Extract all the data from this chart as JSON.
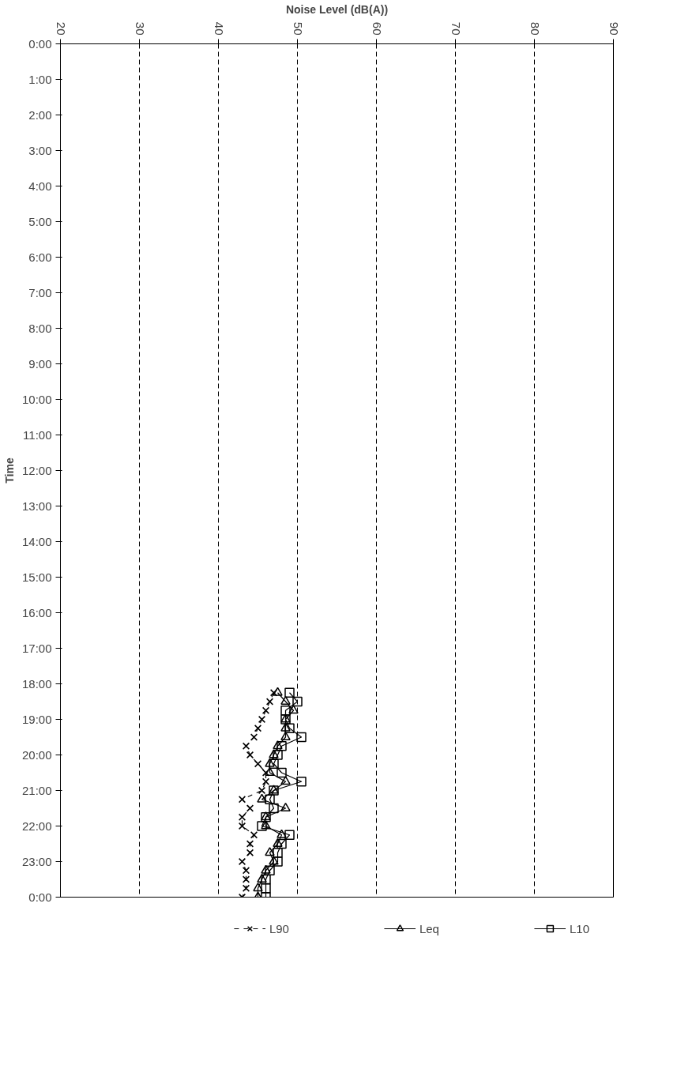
{
  "chart_data": {
    "type": "line",
    "orientation": "horizontal",
    "xlabel": "Noise Level (dB(A))",
    "ylabel": "Time",
    "xlim": [
      20,
      90
    ],
    "xticks": [
      20,
      30,
      40,
      50,
      60,
      70,
      80,
      90
    ],
    "ylim": [
      24,
      0
    ],
    "yticks": [
      {
        "value": 0,
        "label": "0:00"
      },
      {
        "value": 1,
        "label": "1:00"
      },
      {
        "value": 2,
        "label": "2:00"
      },
      {
        "value": 3,
        "label": "3:00"
      },
      {
        "value": 4,
        "label": "4:00"
      },
      {
        "value": 5,
        "label": "5:00"
      },
      {
        "value": 6,
        "label": "6:00"
      },
      {
        "value": 7,
        "label": "7:00"
      },
      {
        "value": 8,
        "label": "8:00"
      },
      {
        "value": 9,
        "label": "9:00"
      },
      {
        "value": 10,
        "label": "10:00"
      },
      {
        "value": 11,
        "label": "11:00"
      },
      {
        "value": 12,
        "label": "12:00"
      },
      {
        "value": 13,
        "label": "13:00"
      },
      {
        "value": 14,
        "label": "14:00"
      },
      {
        "value": 15,
        "label": "15:00"
      },
      {
        "value": 16,
        "label": "16:00"
      },
      {
        "value": 17,
        "label": "17:00"
      },
      {
        "value": 18,
        "label": "18:00"
      },
      {
        "value": 19,
        "label": "19:00"
      },
      {
        "value": 20,
        "label": "20:00"
      },
      {
        "value": 21,
        "label": "21:00"
      },
      {
        "value": 22,
        "label": "22:00"
      },
      {
        "value": 23,
        "label": "23:00"
      },
      {
        "value": 24,
        "label": "0:00"
      }
    ],
    "x": [
      18.25,
      18.5,
      18.75,
      19.0,
      19.25,
      19.5,
      19.75,
      20.0,
      20.25,
      20.5,
      20.75,
      21.0,
      21.25,
      21.5,
      21.75,
      22.0,
      22.25,
      22.5,
      22.75,
      23.0,
      23.25,
      23.5,
      23.75,
      24.0
    ],
    "grid": "x",
    "legend": "bottom",
    "series": [
      {
        "name": "L90",
        "color": "#000000",
        "marker": "cross",
        "line_style": "dashed",
        "values": [
          47,
          46.5,
          46,
          45.5,
          45,
          44.5,
          43.5,
          44,
          45,
          46,
          46,
          45.5,
          43,
          44,
          43,
          43,
          44.5,
          44,
          44,
          43,
          43.5,
          43.5,
          43.5,
          43
        ]
      },
      {
        "name": "Leq",
        "color": "#000000",
        "marker": "triangle",
        "line_style": "solid",
        "values": [
          47.5,
          48.5,
          49.5,
          48.5,
          48.5,
          48.5,
          47.5,
          47,
          46.5,
          46.5,
          48.5,
          47,
          45.5,
          48.5,
          46,
          46,
          48,
          47.5,
          46.5,
          47,
          46,
          45.5,
          45,
          45
        ]
      },
      {
        "name": "L10",
        "color": "#000000",
        "marker": "square",
        "line_style": "solid",
        "values": [
          49,
          50,
          48.5,
          48.5,
          49,
          50.5,
          48,
          47.5,
          47,
          48,
          50.5,
          47,
          46.5,
          47,
          46,
          45.5,
          49,
          48,
          47.5,
          47.5,
          46.5,
          46,
          46,
          46
        ]
      }
    ]
  }
}
